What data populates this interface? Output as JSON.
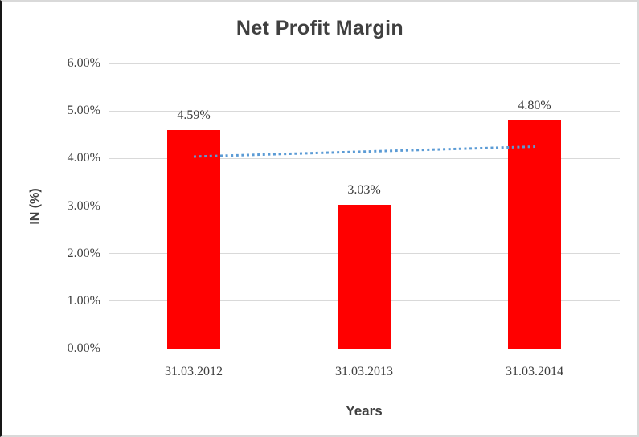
{
  "chart_data": {
    "type": "bar",
    "title": "Net Profit Margin",
    "xlabel": "Years",
    "ylabel": "IN (%)",
    "categories": [
      "31.03.2012",
      "31.03.2013",
      "31.03.2014"
    ],
    "series": [
      {
        "name": "Net Profit Margin",
        "values": [
          4.59,
          3.03,
          4.8
        ],
        "value_labels": [
          "4.59%",
          "3.03%",
          "4.80%"
        ]
      }
    ],
    "ylim": [
      0,
      6
    ],
    "ytick_labels": [
      "0.00%",
      "1.00%",
      "2.00%",
      "3.00%",
      "4.00%",
      "5.00%",
      "6.00%"
    ],
    "grid": true,
    "legend": "none",
    "bar_color": "#ff0000",
    "grid_color": "#d9d9d9",
    "text_color": "#3f3f3f",
    "title_color": "#404040",
    "trendline": {
      "type": "linear",
      "style": "dotted",
      "color": "#5b9bd5",
      "start_value": 4.04,
      "end_value": 4.25
    }
  }
}
